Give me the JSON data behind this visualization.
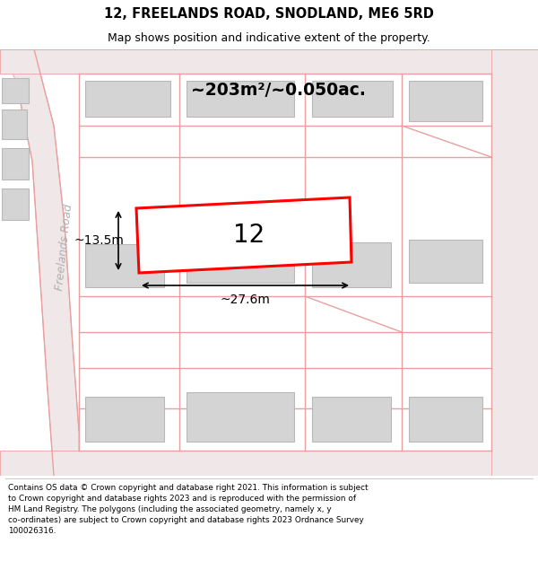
{
  "title_line1": "12, FREELANDS ROAD, SNODLAND, ME6 5RD",
  "title_line2": "Map shows position and indicative extent of the property.",
  "area_label": "~203m²/~0.050ac.",
  "number_label": "12",
  "width_label": "~27.6m",
  "height_label": "~13.5m",
  "road_label": "Freelands Road",
  "copyright_text": "Contains OS data © Crown copyright and database right 2021. This information is subject\nto Crown copyright and database rights 2023 and is reproduced with the permission of\nHM Land Registry. The polygons (including the associated geometry, namely x, y\nco-ordinates) are subject to Crown copyright and database rights 2023 Ordnance Survey\n100026316.",
  "map_bg": "#f2f1ef",
  "road_fill": "#f0e8e8",
  "road_edge": "#e8a0a0",
  "building_fc": "#d4d4d4",
  "building_ec": "#b8b8b8",
  "plot_color": "#ff0000",
  "title_bg": "#ffffff",
  "footer_bg": "#ffffff"
}
